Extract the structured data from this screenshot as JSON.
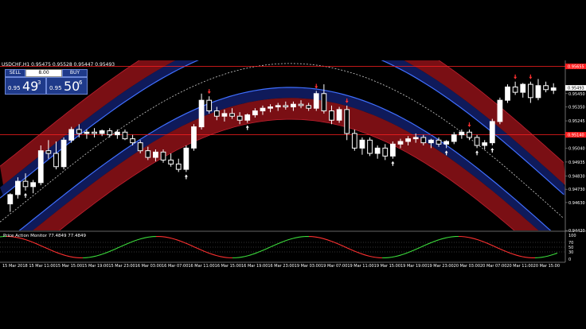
{
  "symbol_info": "USDCHF,H1  0.95475 0.95528 0.95447 0.95493",
  "trade_panel": {
    "sell_label": "SELL",
    "buy_label": "BUY",
    "lot_value": "8.00",
    "sell_prefix": "0.95",
    "sell_big": "49",
    "sell_sup": "3",
    "buy_prefix": "0.95",
    "buy_big": "50",
    "buy_sup": "6"
  },
  "price_axis": [
    "0.95655",
    "0.95450",
    "0.95350",
    "0.95245",
    "0.95140",
    "0.95040",
    "0.94935",
    "0.94830",
    "0.94730",
    "0.94630",
    "0.94420"
  ],
  "current_price": "0.95493",
  "level_price": "0.95140",
  "top_level_price": "0.95655",
  "indicator": {
    "label": "Price Action Monitor 77.4849 77.4849",
    "axis": [
      "100",
      "70",
      "50",
      "30",
      "0"
    ]
  },
  "time_axis": [
    "15 Mar 2018",
    "15 Mar 11:00",
    "15 Mar 15:00",
    "15 Mar 19:00",
    "15 Mar 23:00",
    "16 Mar 03:00",
    "16 Mar 07:00",
    "16 Mar 11:00",
    "16 Mar 15:00",
    "16 Mar 19:00",
    "16 Mar 23:00",
    "19 Mar 03:00",
    "19 Mar 07:00",
    "19 Mar 11:00",
    "19 Mar 15:00",
    "19 Mar 19:00",
    "19 Mar 23:00",
    "20 Mar 03:00",
    "20 Mar 07:00",
    "20 Mar 11:00",
    "20 Mar 15:00"
  ],
  "colors": {
    "background": "#000000",
    "bull": "#ffffff",
    "bear": "#ffffff",
    "band_outer": "#7a0f14",
    "band_inner": "#0f1a5a",
    "band_line": "#3f6fff",
    "level_line": "#ff2020",
    "osc_up": "#3cdc3c",
    "osc_down": "#ff3030"
  },
  "chart_data": {
    "type": "candlestick",
    "ylim": [
      0.9442,
      0.957
    ],
    "candles": [
      [
        0.9462,
        0.947,
        0.9456,
        0.9469
      ],
      [
        0.9469,
        0.9482,
        0.9466,
        0.9479
      ],
      [
        0.9479,
        0.9485,
        0.9472,
        0.9475
      ],
      [
        0.9475,
        0.948,
        0.947,
        0.9478
      ],
      [
        0.9478,
        0.9506,
        0.9476,
        0.9502
      ],
      [
        0.9502,
        0.951,
        0.9496,
        0.95
      ],
      [
        0.95,
        0.9509,
        0.9488,
        0.949
      ],
      [
        0.949,
        0.9512,
        0.9488,
        0.951
      ],
      [
        0.951,
        0.952,
        0.9508,
        0.9518
      ],
      [
        0.9518,
        0.9522,
        0.9512,
        0.9515
      ],
      [
        0.9515,
        0.9518,
        0.9511,
        0.9516
      ],
      [
        0.9516,
        0.9519,
        0.9512,
        0.9515
      ],
      [
        0.9515,
        0.9518,
        0.9513,
        0.9517
      ],
      [
        0.9517,
        0.9519,
        0.9512,
        0.9514
      ],
      [
        0.9514,
        0.9518,
        0.9511,
        0.9516
      ],
      [
        0.9516,
        0.9518,
        0.951,
        0.9511
      ],
      [
        0.9511,
        0.9514,
        0.9506,
        0.9508
      ],
      [
        0.9508,
        0.951,
        0.95,
        0.9502
      ],
      [
        0.9502,
        0.9505,
        0.9495,
        0.9497
      ],
      [
        0.9497,
        0.9503,
        0.9494,
        0.9501
      ],
      [
        0.9501,
        0.9503,
        0.9493,
        0.9495
      ],
      [
        0.9495,
        0.95,
        0.949,
        0.9492
      ],
      [
        0.9492,
        0.9496,
        0.9486,
        0.9488
      ],
      [
        0.9488,
        0.9506,
        0.9486,
        0.9504
      ],
      [
        0.9504,
        0.9522,
        0.9502,
        0.952
      ],
      [
        0.952,
        0.9545,
        0.9518,
        0.954
      ],
      [
        0.954,
        0.9543,
        0.953,
        0.9532
      ],
      [
        0.9532,
        0.9535,
        0.9525,
        0.9528
      ],
      [
        0.9528,
        0.9533,
        0.9524,
        0.953
      ],
      [
        0.953,
        0.9534,
        0.9526,
        0.9528
      ],
      [
        0.9528,
        0.9531,
        0.9522,
        0.9525
      ],
      [
        0.9525,
        0.953,
        0.9523,
        0.9529
      ],
      [
        0.9529,
        0.9534,
        0.9527,
        0.9532
      ],
      [
        0.9532,
        0.9536,
        0.9529,
        0.9534
      ],
      [
        0.9534,
        0.9537,
        0.9531,
        0.9535
      ],
      [
        0.9535,
        0.9538,
        0.9532,
        0.9536
      ],
      [
        0.9536,
        0.9539,
        0.9533,
        0.9535
      ],
      [
        0.9535,
        0.9539,
        0.9532,
        0.9537
      ],
      [
        0.9537,
        0.954,
        0.9534,
        0.9536
      ],
      [
        0.9536,
        0.9538,
        0.9532,
        0.9534
      ],
      [
        0.9534,
        0.9547,
        0.9532,
        0.9545
      ],
      [
        0.9545,
        0.9552,
        0.953,
        0.9532
      ],
      [
        0.9532,
        0.9536,
        0.9522,
        0.9525
      ],
      [
        0.9525,
        0.9535,
        0.9523,
        0.9533
      ],
      [
        0.9533,
        0.9536,
        0.951,
        0.9515
      ],
      [
        0.9515,
        0.9518,
        0.9502,
        0.9504
      ],
      [
        0.9504,
        0.9512,
        0.9499,
        0.951
      ],
      [
        0.951,
        0.9512,
        0.9498,
        0.95
      ],
      [
        0.95,
        0.9506,
        0.9496,
        0.9504
      ],
      [
        0.9504,
        0.9507,
        0.9495,
        0.9498
      ],
      [
        0.9498,
        0.9509,
        0.9496,
        0.9507
      ],
      [
        0.9507,
        0.9511,
        0.9504,
        0.9509
      ],
      [
        0.9509,
        0.9513,
        0.9506,
        0.9511
      ],
      [
        0.9511,
        0.9515,
        0.9508,
        0.9512
      ],
      [
        0.9512,
        0.9514,
        0.9506,
        0.9508
      ],
      [
        0.9508,
        0.9511,
        0.9504,
        0.951
      ],
      [
        0.951,
        0.9512,
        0.9505,
        0.9507
      ],
      [
        0.9507,
        0.951,
        0.9504,
        0.9509
      ],
      [
        0.9509,
        0.9516,
        0.9507,
        0.9514
      ],
      [
        0.9514,
        0.9518,
        0.9511,
        0.9516
      ],
      [
        0.9516,
        0.9518,
        0.951,
        0.9512
      ],
      [
        0.9512,
        0.9514,
        0.9504,
        0.9506
      ],
      [
        0.9506,
        0.951,
        0.9503,
        0.9508
      ],
      [
        0.9508,
        0.9526,
        0.9506,
        0.9524
      ],
      [
        0.9524,
        0.9542,
        0.9522,
        0.954
      ],
      [
        0.954,
        0.9552,
        0.9538,
        0.955
      ],
      [
        0.955,
        0.9554,
        0.9544,
        0.9546
      ],
      [
        0.9546,
        0.9553,
        0.9542,
        0.9552
      ],
      [
        0.9552,
        0.9554,
        0.9538,
        0.9542
      ],
      [
        0.9542,
        0.9556,
        0.954,
        0.9551
      ],
      [
        0.9551,
        0.9554,
        0.9546,
        0.9548
      ],
      [
        0.95475,
        0.95528,
        0.95447,
        0.95493
      ]
    ]
  }
}
